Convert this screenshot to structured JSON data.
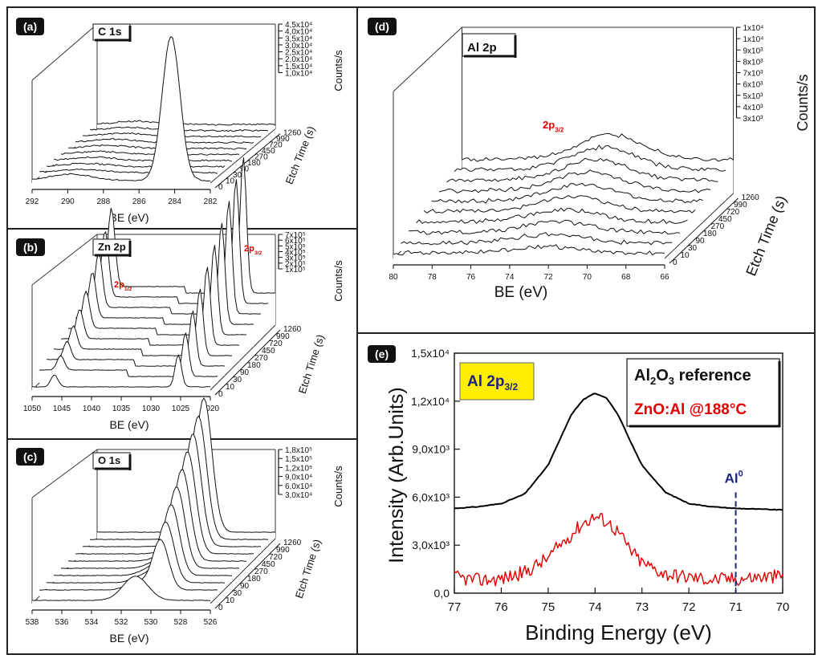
{
  "figure": {
    "panel_a": {
      "tag": "(a)",
      "label": "C 1s"
    },
    "panel_b": {
      "tag": "(b)",
      "label": "Zn 2p"
    },
    "panel_c": {
      "tag": "(c)",
      "label": "O 1s"
    },
    "panel_d": {
      "tag": "(d)",
      "label": "Al 2p"
    },
    "panel_e": {
      "tag": "(e)",
      "label": "Al 2p3/2"
    }
  },
  "chart_data": [
    {
      "id": "a",
      "type": "line",
      "title": "C 1s",
      "xlabel": "BE (eV)",
      "ylabel": "Counts/s",
      "zlabel": "Etch Time (s)",
      "x_ticks": [
        "292",
        "290",
        "288",
        "286",
        "284",
        "282"
      ],
      "y_ticks": [
        "1,0x10⁴",
        "1,5x10⁴",
        "2,0x10⁴",
        "2,5x10⁴",
        "3,0x10⁴",
        "3,5x10⁴",
        "4,0x10⁴",
        "4,5x10⁴"
      ],
      "z_ticks": [
        "0",
        "10",
        "30",
        "90",
        "180",
        "270",
        "450",
        "720",
        "990",
        "1260"
      ],
      "series": [
        {
          "etch_time_s": 0,
          "peak_center_eV": 284.6,
          "peak_counts": 40000
        }
      ]
    },
    {
      "id": "b",
      "type": "line",
      "title": "Zn 2p",
      "xlabel": "BE (eV)",
      "ylabel": "Counts/s",
      "zlabel": "Etch Time (s)",
      "x_ticks": [
        "1050",
        "1045",
        "1040",
        "1035",
        "1030",
        "1025",
        "1020"
      ],
      "y_ticks": [
        "1x10⁵",
        "2x10⁵",
        "3x10⁵",
        "4x10⁵",
        "5x10⁵",
        "6x10⁵",
        "7x10⁵"
      ],
      "z_ticks": [
        "0",
        "10",
        "30",
        "90",
        "180",
        "270",
        "450",
        "720",
        "990",
        "1260"
      ],
      "annotations": [
        "2p1/2",
        "2p3/2"
      ],
      "peaks_eV": [
        1044.5,
        1021.5
      ]
    },
    {
      "id": "c",
      "type": "line",
      "title": "O 1s",
      "xlabel": "BE (eV)",
      "ylabel": "Counts/s",
      "zlabel": "Etch Time (s)",
      "x_ticks": [
        "538",
        "536",
        "534",
        "532",
        "530",
        "528",
        "526"
      ],
      "y_ticks": [
        "3,0x10⁴",
        "6,0x10⁴",
        "9,0x10⁴",
        "1,2x10⁵",
        "1,5x10⁵",
        "1,8x10⁵"
      ],
      "z_ticks": [
        "0",
        "10",
        "30",
        "90",
        "180",
        "270",
        "450",
        "720",
        "990",
        "1260"
      ],
      "peaks_eV": [
        531.5,
        530.2
      ]
    },
    {
      "id": "d",
      "type": "line",
      "title": "Al 2p",
      "xlabel": "BE (eV)",
      "ylabel": "Counts/s",
      "zlabel": "Etch Time (s)",
      "x_ticks": [
        "80",
        "78",
        "76",
        "74",
        "72",
        "70",
        "68",
        "66"
      ],
      "y_ticks": [
        "3x10³",
        "4x10³",
        "5x10³",
        "6x10³",
        "7x10³",
        "8x10³",
        "9x10³",
        "1x10⁴",
        "1x10⁴"
      ],
      "z_ticks": [
        "0",
        "10",
        "30",
        "90",
        "180",
        "270",
        "450",
        "720",
        "990",
        "1260"
      ],
      "annotations": [
        "2p3/2"
      ],
      "peak_eV": 74
    },
    {
      "id": "e",
      "type": "line",
      "title": "Al 2p3/2",
      "xlabel": "Binding Energy (eV)",
      "ylabel": "Intensity (Arb.Units)",
      "x_ticks": [
        "77",
        "76",
        "75",
        "74",
        "73",
        "72",
        "71",
        "70"
      ],
      "xlim": [
        77,
        70
      ],
      "y_ticks": [
        "0,0",
        "3,0x10³",
        "6,0x10³",
        "9,0x10³",
        "1,2x10⁴",
        "1,5x10⁴"
      ],
      "ylim": [
        0,
        15000
      ],
      "legend": [
        "Al2O3 reference",
        "ZnO:Al @188°C"
      ],
      "annotation": "Al0",
      "marker_x": 71,
      "series": [
        {
          "name": "Al2O3 reference",
          "color": "#000000",
          "x": [
            77,
            76.5,
            76,
            75.5,
            75,
            74.75,
            74.5,
            74.25,
            74,
            73.75,
            73.5,
            73.25,
            73,
            72.5,
            72,
            71.5,
            71,
            70.5,
            70
          ],
          "values": [
            5300,
            5400,
            5600,
            6200,
            8000,
            9600,
            11200,
            12100,
            12500,
            12200,
            11100,
            9500,
            8000,
            6300,
            5600,
            5400,
            5300,
            5250,
            5200
          ]
        },
        {
          "name": "ZnO:Al @188°C",
          "color": "#e00000",
          "x": [
            77,
            76.5,
            76,
            75.5,
            75,
            74.75,
            74.5,
            74.25,
            74,
            73.75,
            73.5,
            73.25,
            73,
            72.5,
            72,
            71.5,
            71,
            70.5,
            70
          ],
          "values": [
            1000,
            800,
            900,
            1300,
            2200,
            3000,
            3700,
            4400,
            4800,
            4500,
            3800,
            2700,
            1900,
            1200,
            1000,
            850,
            900,
            1000,
            1050
          ]
        }
      ]
    }
  ]
}
